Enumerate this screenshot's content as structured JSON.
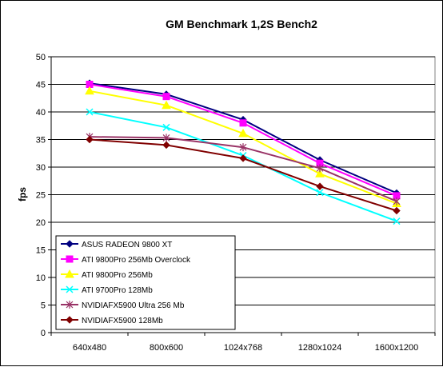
{
  "chart_data": {
    "type": "line",
    "title": "GM Benchmark 1,2S Bench2",
    "xlabel": "",
    "ylabel": "fps",
    "ylim": [
      0,
      50
    ],
    "yticks": [
      0,
      5,
      10,
      15,
      20,
      25,
      30,
      35,
      40,
      45,
      50
    ],
    "grid": "horizontal",
    "legend_position": "bottom-left",
    "categories": [
      "640x480",
      "800x600",
      "1024x768",
      "1280x1024",
      "1600x1200"
    ],
    "series": [
      {
        "name": "ASUS RADEON 9800 XT",
        "color": "#000080",
        "marker": "diamond",
        "values": [
          45.2,
          43.2,
          38.6,
          31.3,
          25.3
        ]
      },
      {
        "name": "ATI 9800Pro 256Mb Overclock",
        "color": "#ff00ff",
        "marker": "square",
        "values": [
          45.0,
          42.8,
          38.0,
          30.7,
          24.8
        ]
      },
      {
        "name": "ATI 9800Pro 256Mb",
        "color": "#ffff00",
        "marker": "triangle",
        "values": [
          43.8,
          41.2,
          36.1,
          28.8,
          23.4
        ]
      },
      {
        "name": "ATI 9700Pro 128Mb",
        "color": "#00ffff",
        "marker": "x",
        "values": [
          40.0,
          37.2,
          32.1,
          25.4,
          20.2
        ]
      },
      {
        "name": "NVIDIAFX5900 Ultra 256 Mb",
        "color": "#993366",
        "marker": "star",
        "values": [
          35.5,
          35.3,
          33.6,
          29.8,
          23.8
        ]
      },
      {
        "name": "NVIDIAFX5900 128Mb",
        "color": "#800000",
        "marker": "diamond",
        "values": [
          35.0,
          34.0,
          31.6,
          26.5,
          22.1
        ]
      }
    ]
  }
}
